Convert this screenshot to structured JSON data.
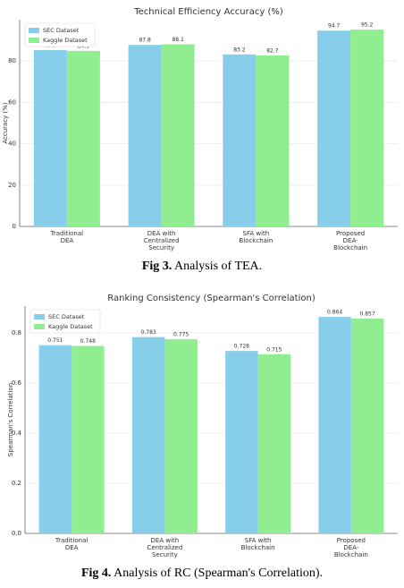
{
  "chart_data": [
    {
      "type": "bar",
      "title": "Technical Efficiency Accuracy (%)",
      "y_label": "Accuracy (%)",
      "categories": [
        "Traditional\nDEA",
        "DEA with\nCentralized\nSecurity",
        "SFA with\nBlockchain",
        "Proposed\nDEA-\nBlockchain"
      ],
      "series": [
        {
          "name": "SEC Dataset",
          "color": "#87ceeb",
          "values": [
            85.3,
            87.8,
            83.2,
            94.7
          ]
        },
        {
          "name": "Kaggle Dataset",
          "color": "#90ee90",
          "values": [
            84.9,
            88.1,
            82.7,
            95.2
          ]
        }
      ],
      "ylim": [
        0,
        100
      ],
      "yticks": [
        0,
        20,
        40,
        60,
        80
      ],
      "grid": true,
      "legend": "upper-left",
      "caption": {
        "label": "Fig 3.",
        "text": "Analysis of TEA."
      }
    },
    {
      "type": "bar",
      "title": "Ranking Consistency (Spearman's Correlation)",
      "y_label": "Spearman's Correlation",
      "categories": [
        "Traditional\nDEA",
        "DEA with\nCentralized\nSecurity",
        "SFA with\nBlockchain",
        "Proposed\nDEA-\nBlockchain"
      ],
      "series": [
        {
          "name": "SEC Dataset",
          "color": "#87ceeb",
          "values": [
            0.751,
            0.783,
            0.728,
            0.864
          ]
        },
        {
          "name": "Kaggle Dataset",
          "color": "#90ee90",
          "values": [
            0.748,
            0.775,
            0.715,
            0.857
          ]
        }
      ],
      "ylim": [
        0,
        0.907
      ],
      "yticks": [
        {
          "value": 0,
          "label": "0.0"
        },
        0.2,
        0.4,
        0.6,
        0.8
      ],
      "grid": true,
      "legend": "upper-left",
      "caption": {
        "label": "Fig 4.",
        "text": "Analysis of RC (Spearman's Correlation)."
      }
    }
  ]
}
